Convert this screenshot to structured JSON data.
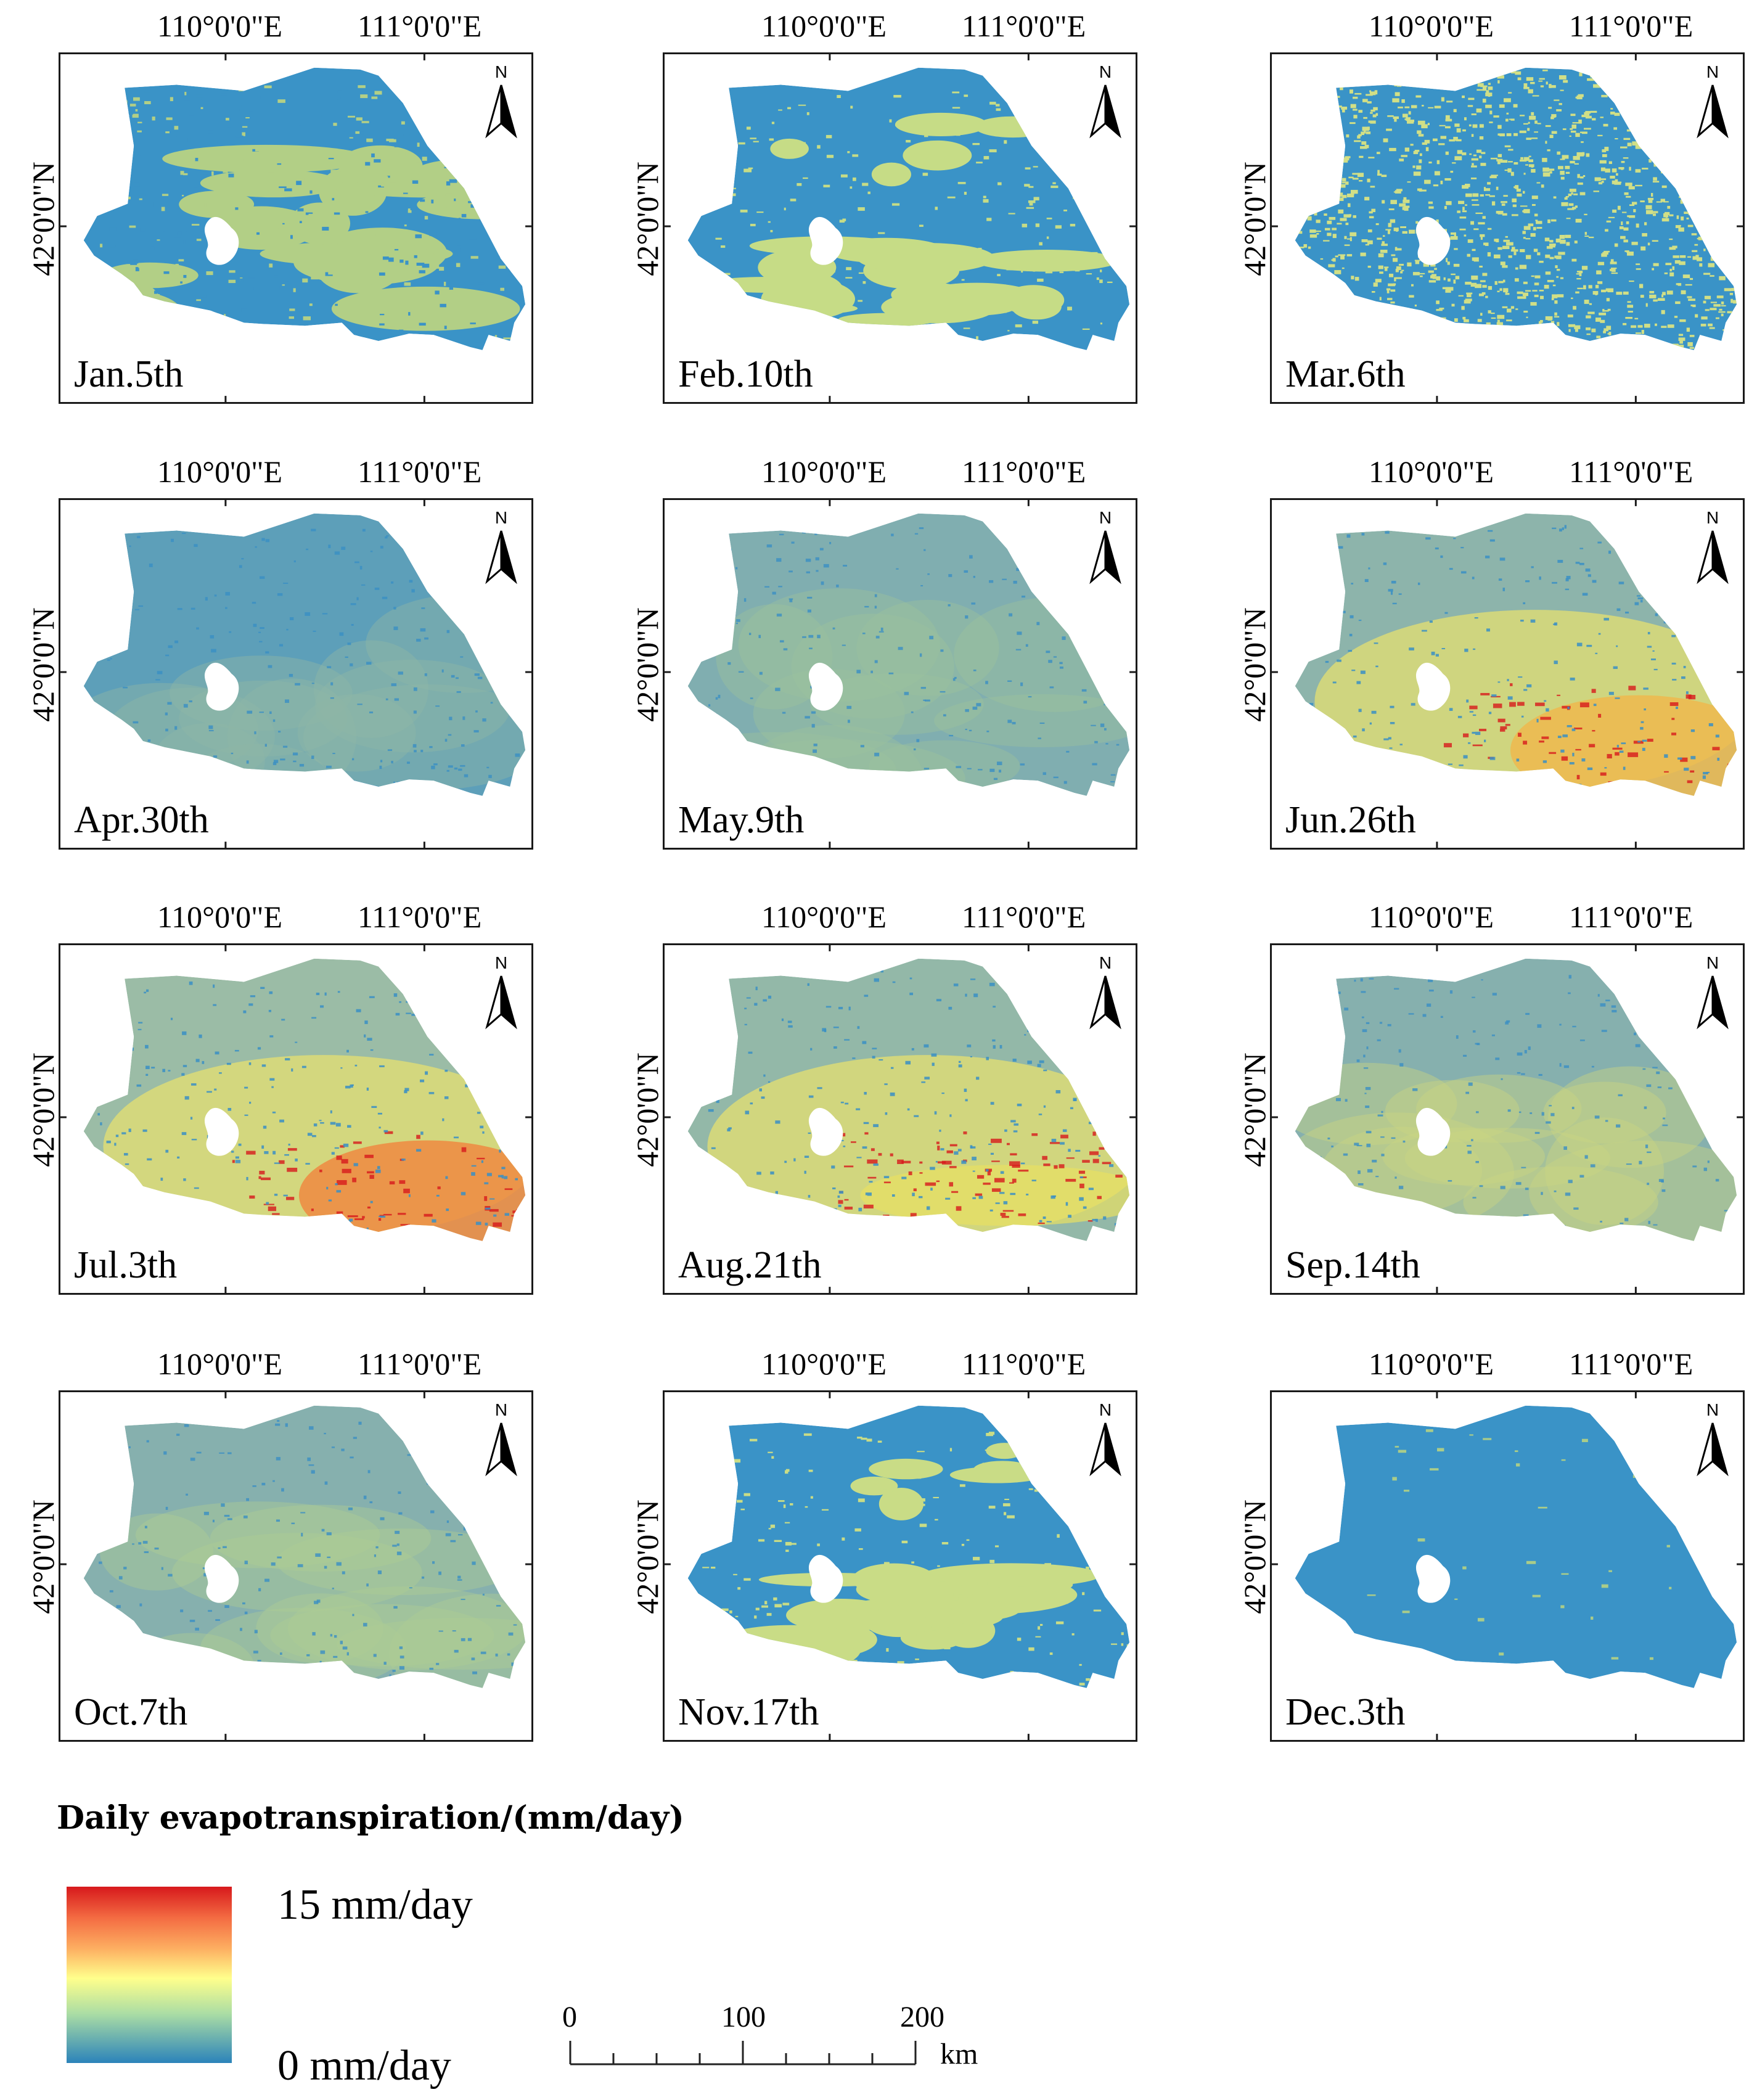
{
  "maps": [
    {
      "date": "Jan.5th",
      "lon_labels": [
        "110°0'0\"E",
        "111°0'0\"E"
      ],
      "lat_label": "42°0'0\"N",
      "north": "N",
      "base": "#3a93c7",
      "patch": "#b2cf86",
      "pattern": "mixed"
    },
    {
      "date": "Feb.10th",
      "lon_labels": [
        "110°0'0\"E",
        "111°0'0\"E"
      ],
      "lat_label": "42°0'0\"N",
      "north": "N",
      "base": "#3a93c7",
      "patch": "#c6dc86",
      "pattern": "band"
    },
    {
      "date": "Mar.6th",
      "lon_labels": [
        "110°0'0\"E",
        "111°0'0\"E"
      ],
      "lat_label": "42°0'0\"N",
      "north": "N",
      "base": "#3a93c7",
      "patch": "#d1df86",
      "pattern": "speckle"
    },
    {
      "date": "Apr.30th",
      "lon_labels": [
        "110°0'0\"E",
        "111°0'0\"E"
      ],
      "lat_label": "42°0'0\"N",
      "north": "N",
      "base": "#5d9fb9",
      "patch": "#8fb6a7",
      "pattern": "smooth"
    },
    {
      "date": "May.9th",
      "lon_labels": [
        "110°0'0\"E",
        "111°0'0\"E"
      ],
      "lat_label": "42°0'0\"N",
      "north": "N",
      "base": "#80aeb0",
      "patch": "#9cc29e",
      "pattern": "smooth"
    },
    {
      "date": "Jun.26th",
      "lon_labels": [
        "110°0'0\"E",
        "111°0'0\"E"
      ],
      "lat_label": "42°0'0\"N",
      "north": "N",
      "base": "#8db4ab",
      "patch": "#eeb84d",
      "pattern": "hot"
    },
    {
      "date": "Jul.3th",
      "lon_labels": [
        "110°0'0\"E",
        "111°0'0\"E"
      ],
      "lat_label": "42°0'0\"N",
      "north": "N",
      "base": "#9bbca6",
      "patch": "#ef8a41",
      "pattern": "hot"
    },
    {
      "date": "Aug.21th",
      "lon_labels": [
        "110°0'0\"E",
        "111°0'0\"E"
      ],
      "lat_label": "42°0'0\"N",
      "north": "N",
      "base": "#93b8a8",
      "patch": "#e8df63",
      "pattern": "warm"
    },
    {
      "date": "Sep.14th",
      "lon_labels": [
        "110°0'0\"E",
        "111°0'0\"E"
      ],
      "lat_label": "42°0'0\"N",
      "north": "N",
      "base": "#86b0ae",
      "patch": "#c9d483",
      "pattern": "smooth"
    },
    {
      "date": "Oct.7th",
      "lon_labels": [
        "110°0'0\"E",
        "111°0'0\"E"
      ],
      "lat_label": "42°0'0\"N",
      "north": "N",
      "base": "#86b0ae",
      "patch": "#aecb95",
      "pattern": "smooth"
    },
    {
      "date": "Nov.17th",
      "lon_labels": [
        "110°0'0\"E",
        "111°0'0\"E"
      ],
      "lat_label": "42°0'0\"N",
      "north": "N",
      "base": "#3a93c7",
      "patch": "#c9dc86",
      "pattern": "band"
    },
    {
      "date": "Dec.3th",
      "lon_labels": [
        "110°0'0\"E",
        "111°0'0\"E"
      ],
      "lat_label": "42°0'0\"N",
      "north": "N",
      "base": "#3a93c7",
      "patch": "#a9cc8a",
      "pattern": "sparse"
    }
  ],
  "legend": {
    "title": "Daily evapotranspiration/(mm/day)",
    "max_label": "15 mm/day",
    "min_label": "0 mm/day",
    "max_value": 15,
    "min_value": 0,
    "colors": [
      "#d7191c",
      "#fdae61",
      "#ffff8c",
      "#abdda4",
      "#2b83ba"
    ]
  },
  "scale_bar": {
    "labels": [
      "0",
      "100",
      "200"
    ],
    "unit": "km"
  }
}
